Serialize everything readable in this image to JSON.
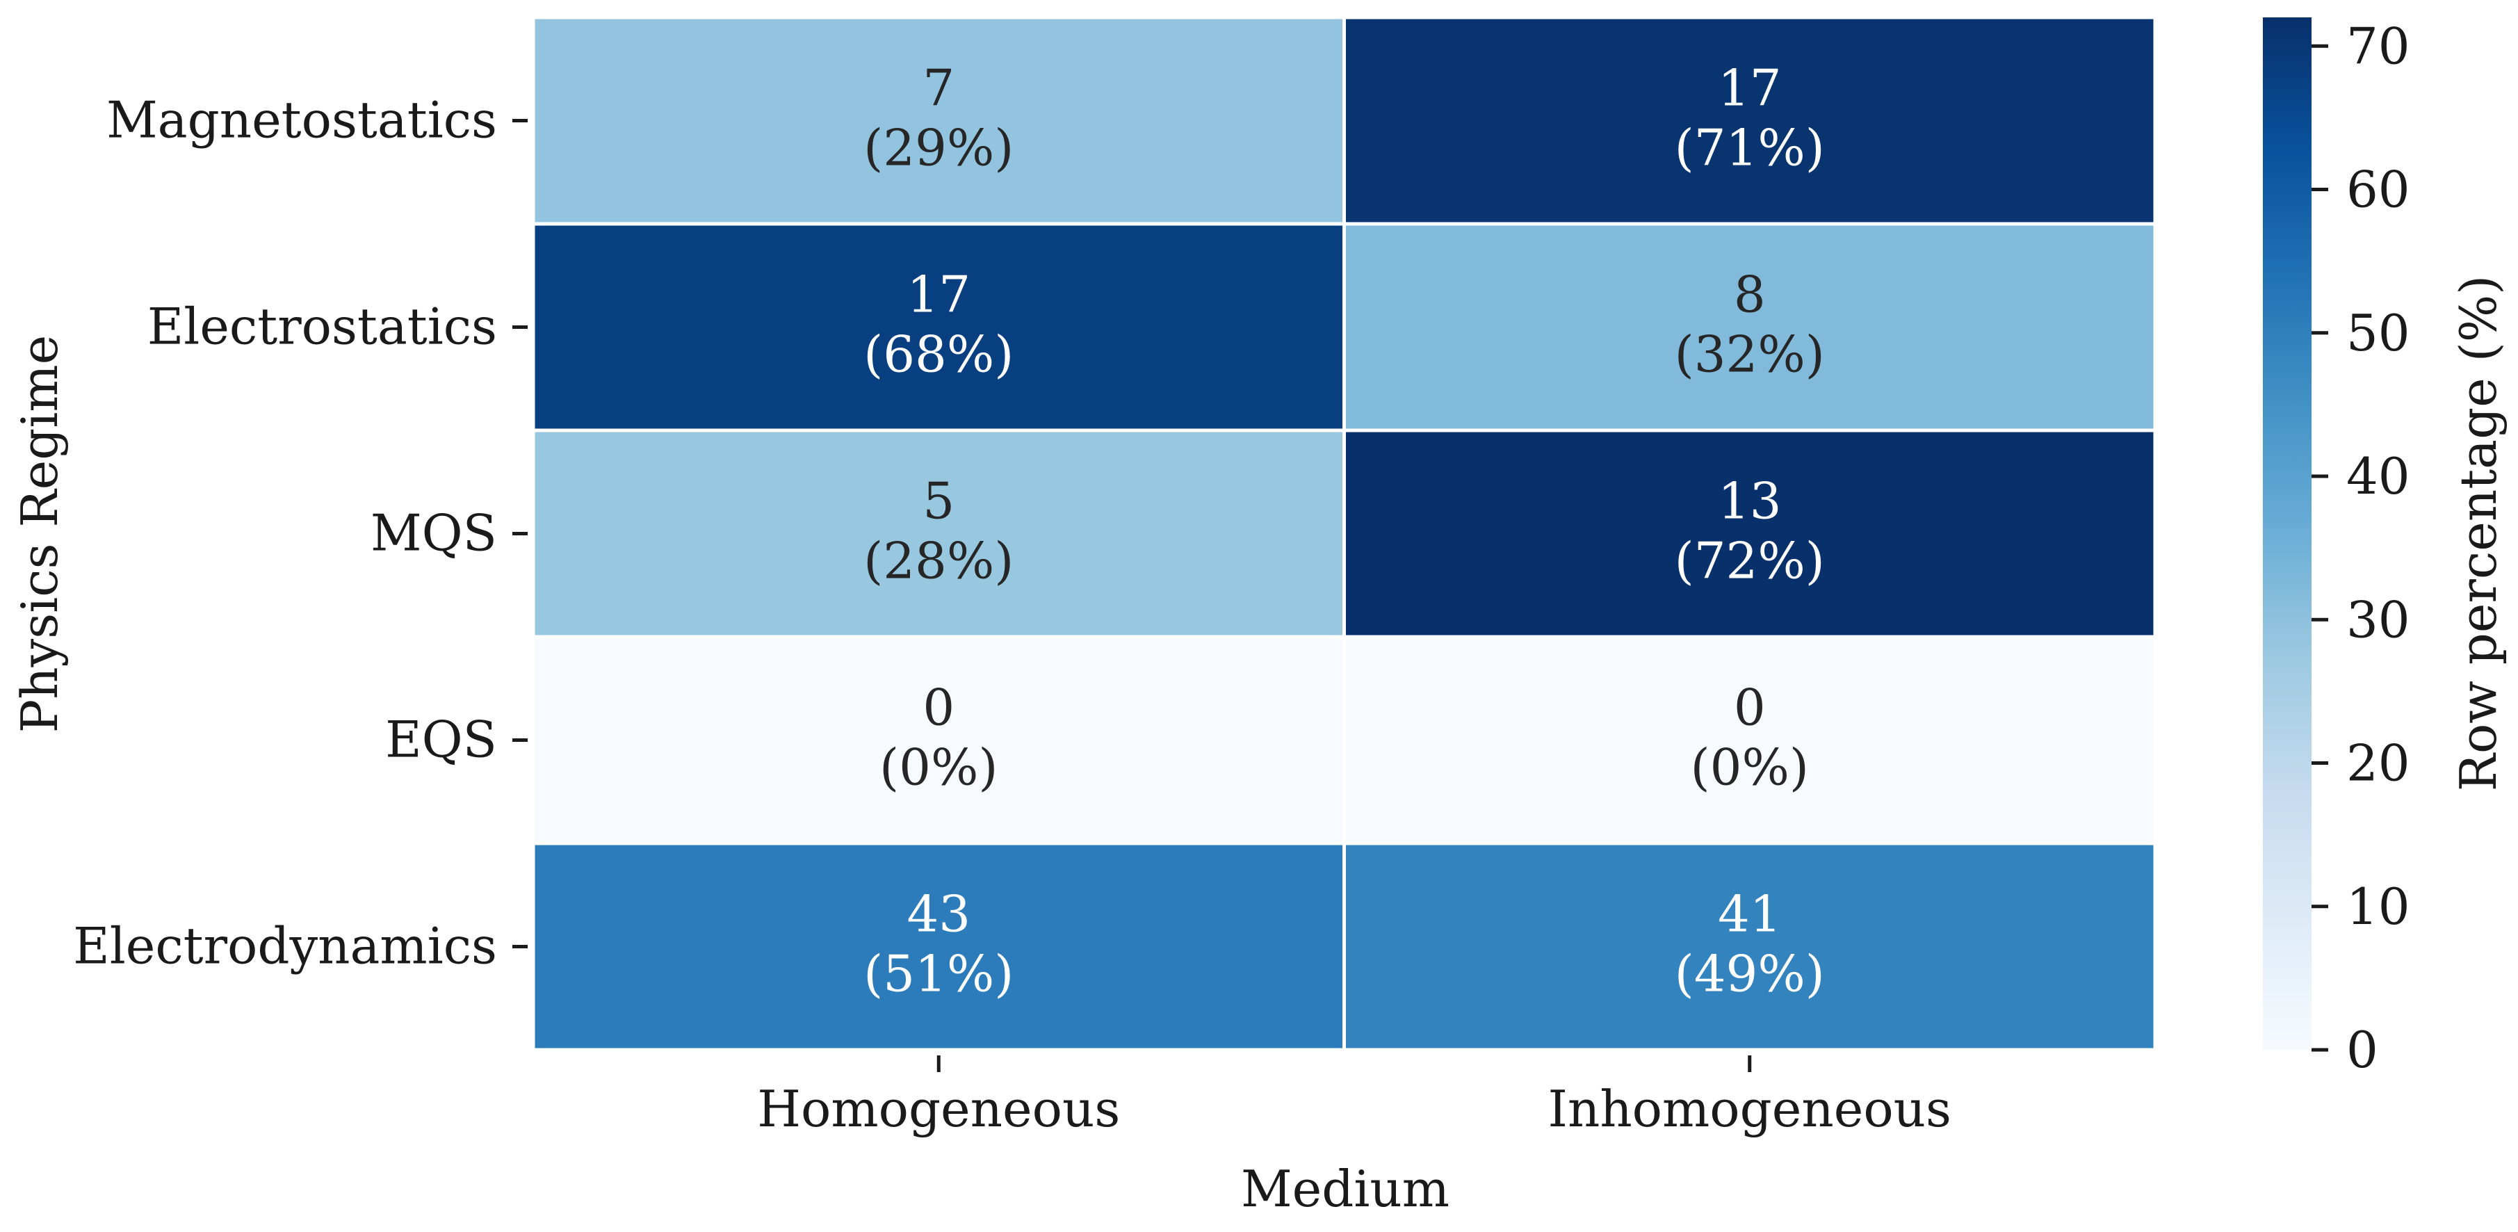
{
  "chart_data": {
    "type": "heatmap",
    "title": "",
    "xlabel": "Medium",
    "ylabel": "Physics Regime",
    "x_categories": [
      "Homogeneous",
      "Inhomogeneous"
    ],
    "y_categories": [
      "Magnetostatics",
      "Electrostatics",
      "MQS",
      "EQS",
      "Electrodynamics"
    ],
    "counts": [
      [
        7,
        17
      ],
      [
        17,
        8
      ],
      [
        5,
        13
      ],
      [
        0,
        0
      ],
      [
        43,
        41
      ]
    ],
    "cell_labels": [
      [
        "7",
        "(29%)",
        "17",
        "(71%)"
      ],
      [
        "17",
        "(68%)",
        "8",
        "(32%)"
      ],
      [
        "5",
        "(28%)",
        "13",
        "(72%)"
      ],
      [
        "0",
        "(0%)",
        "0",
        "(0%)"
      ],
      [
        "43",
        "(51%)",
        "41",
        "(49%)"
      ]
    ],
    "row_percentages": [
      [
        29,
        71
      ],
      [
        68,
        32
      ],
      [
        28,
        72
      ],
      [
        0,
        0
      ],
      [
        51,
        49
      ]
    ],
    "colorbar": {
      "label": "Row percentage (%)",
      "min": 0,
      "max": 72,
      "ticks": [
        0,
        10,
        20,
        30,
        40,
        50,
        60,
        70
      ],
      "colormap": "Blues",
      "colormap_stops": [
        "#f7fbff",
        "#deebf7",
        "#c6dbef",
        "#9ecae1",
        "#6baed6",
        "#4292c6",
        "#2171b5",
        "#08519c",
        "#08306b"
      ]
    },
    "grid": false,
    "legend": "colorbar-right"
  }
}
